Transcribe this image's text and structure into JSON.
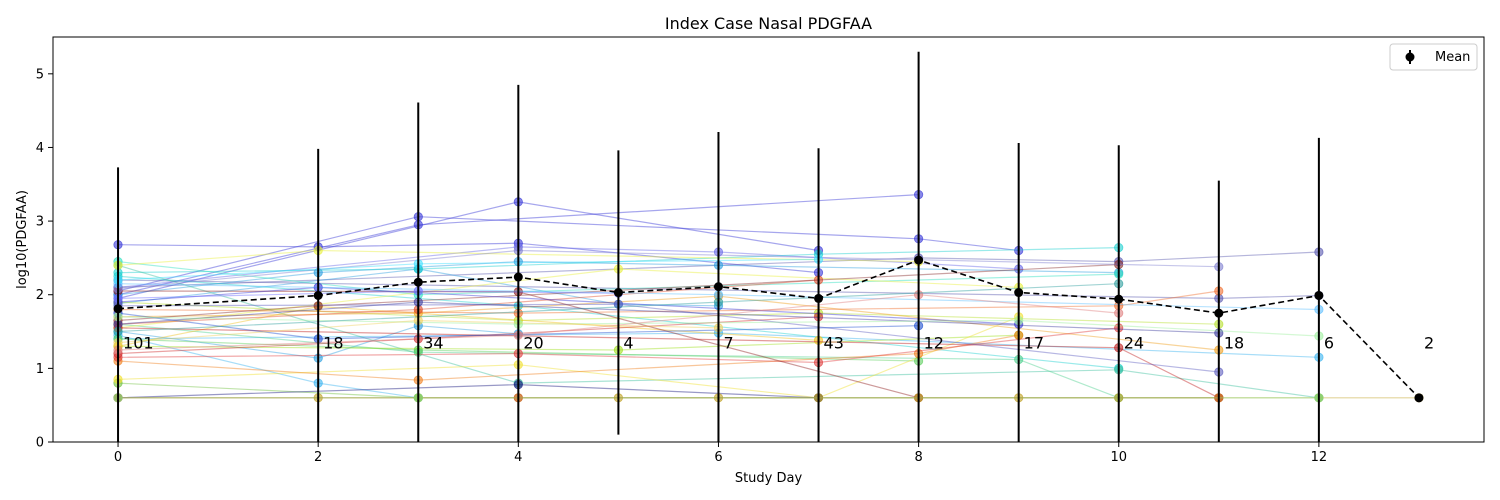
{
  "chart_data": {
    "type": "line",
    "title": "Index Case Nasal PDGFAA",
    "xlabel": "Study Day",
    "ylabel": "log10(PDGFAA)",
    "xlim": [
      -0.65,
      13.65
    ],
    "ylim": [
      0,
      5.5
    ],
    "xticks": [
      0,
      2,
      4,
      6,
      8,
      10,
      12
    ],
    "yticks": [
      0,
      1,
      2,
      3,
      4,
      5
    ],
    "legend": {
      "position": "top-right",
      "entries": [
        "Mean"
      ]
    },
    "colors": {
      "mean": "#000000",
      "axes": "#000000"
    },
    "mean_series": {
      "name": "Mean",
      "x": [
        0,
        2,
        3,
        4,
        5,
        6,
        7,
        8,
        9,
        10,
        11,
        12,
        13
      ],
      "y": [
        1.81,
        1.99,
        2.17,
        2.24,
        2.03,
        2.11,
        1.95,
        2.47,
        2.03,
        1.94,
        1.75,
        1.99,
        0.6
      ],
      "error_low": [
        0,
        0,
        0,
        0,
        0.1,
        0,
        0,
        0,
        0,
        0,
        0,
        0,
        0.6
      ],
      "error_high": [
        3.73,
        3.98,
        4.61,
        4.85,
        3.96,
        4.21,
        3.99,
        5.3,
        4.06,
        4.03,
        3.55,
        4.13,
        0.6
      ]
    },
    "counts": {
      "x": [
        0,
        2,
        3,
        4,
        5,
        6,
        7,
        8,
        9,
        10,
        11,
        12,
        13
      ],
      "labels": [
        "101",
        "18",
        "34",
        "20",
        "4",
        "7",
        "43",
        "12",
        "17",
        "24",
        "18",
        "6",
        "2"
      ],
      "y": 1.35
    },
    "subjects": [
      {
        "color": "#3a3ad8",
        "x": [
          0,
          3,
          8
        ],
        "y": [
          2.0,
          2.95,
          3.36
        ]
      },
      {
        "color": "#3a3ad8",
        "x": [
          0,
          4,
          7
        ],
        "y": [
          1.95,
          3.26,
          2.6
        ]
      },
      {
        "color": "#3a3ad8",
        "x": [
          0,
          3,
          8,
          9
        ],
        "y": [
          2.05,
          3.06,
          2.76,
          2.6
        ]
      },
      {
        "color": "#3a3ad8",
        "x": [
          0,
          2,
          4,
          7
        ],
        "y": [
          2.68,
          2.65,
          2.7,
          2.3
        ]
      },
      {
        "color": "#6a6ae8",
        "x": [
          0,
          4,
          6,
          9
        ],
        "y": [
          2.1,
          2.65,
          2.58,
          2.35
        ]
      },
      {
        "color": "#5a5ab0",
        "x": [
          0,
          8,
          10,
          12
        ],
        "y": [
          2.1,
          2.5,
          2.45,
          2.58
        ]
      },
      {
        "color": "#5a5ab0",
        "x": [
          0,
          11,
          12
        ],
        "y": [
          2.2,
          1.95,
          1.99
        ]
      },
      {
        "color": "#2ea0e0",
        "x": [
          0,
          2,
          4,
          6,
          10
        ],
        "y": [
          2.0,
          2.3,
          2.45,
          2.4,
          2.3
        ]
      },
      {
        "color": "#2ea0e0",
        "x": [
          0,
          3,
          5,
          6
        ],
        "y": [
          1.88,
          2.35,
          1.87,
          1.85
        ]
      },
      {
        "color": "#2ea0e0",
        "x": [
          0,
          2,
          3,
          4
        ],
        "y": [
          1.5,
          1.14,
          1.58,
          1.47
        ]
      },
      {
        "color": "#3bb4f0",
        "x": [
          0,
          2,
          3
        ],
        "y": [
          1.45,
          0.8,
          0.6
        ]
      },
      {
        "color": "#3bb4f0",
        "x": [
          0,
          6,
          12
        ],
        "y": [
          1.4,
          1.48,
          1.15
        ]
      },
      {
        "color": "#20d0d0",
        "x": [
          0,
          3,
          7,
          10
        ],
        "y": [
          2.3,
          2.35,
          2.55,
          2.64
        ]
      },
      {
        "color": "#20d0d0",
        "x": [
          0,
          4,
          10
        ],
        "y": [
          2.25,
          1.85,
          1.0
        ]
      },
      {
        "color": "#30e0c0",
        "x": [
          0,
          3,
          10
        ],
        "y": [
          2.45,
          2.0,
          2.28
        ]
      },
      {
        "color": "#40c0a0",
        "x": [
          0,
          4,
          10,
          12
        ],
        "y": [
          2.4,
          0.8,
          0.98,
          0.6
        ]
      },
      {
        "color": "#50d090",
        "x": [
          0,
          3,
          9,
          10
        ],
        "y": [
          1.6,
          1.22,
          1.12,
          0.6
        ]
      },
      {
        "color": "#60d060",
        "x": [
          0,
          3,
          8
        ],
        "y": [
          1.4,
          1.25,
          1.1
        ]
      },
      {
        "color": "#70c040",
        "x": [
          0,
          3,
          11
        ],
        "y": [
          0.8,
          0.6,
          0.6
        ]
      },
      {
        "color": "#a0e020",
        "x": [
          0,
          5,
          9
        ],
        "y": [
          1.3,
          1.25,
          1.45
        ]
      },
      {
        "color": "#b8e030",
        "x": [
          0,
          4,
          7,
          11
        ],
        "y": [
          1.9,
          1.65,
          1.75,
          1.6
        ]
      },
      {
        "color": "#e8f040",
        "x": [
          0,
          2,
          8
        ],
        "y": [
          2.4,
          2.6,
          2.45
        ]
      },
      {
        "color": "#e8f040",
        "x": [
          0,
          5,
          9
        ],
        "y": [
          1.55,
          2.35,
          2.1
        ]
      },
      {
        "color": "#f0e030",
        "x": [
          0,
          4,
          7,
          9
        ],
        "y": [
          0.85,
          1.05,
          0.6,
          1.7
        ]
      },
      {
        "color": "#f0c020",
        "x": [
          0,
          2,
          7
        ],
        "y": [
          1.3,
          1.84,
          1.38
        ]
      },
      {
        "color": "#f0a020",
        "x": [
          0,
          3,
          6,
          11
        ],
        "y": [
          1.7,
          1.75,
          1.98,
          1.25
        ]
      },
      {
        "color": "#f08020",
        "x": [
          0,
          3,
          8,
          9
        ],
        "y": [
          1.1,
          0.84,
          1.2,
          1.45
        ]
      },
      {
        "color": "#f07030",
        "x": [
          0,
          4,
          10,
          11
        ],
        "y": [
          1.8,
          1.75,
          1.85,
          2.05
        ]
      },
      {
        "color": "#e05030",
        "x": [
          0,
          3,
          7
        ],
        "y": [
          1.6,
          1.8,
          2.2
        ]
      },
      {
        "color": "#e04040",
        "x": [
          0,
          4,
          7,
          10
        ],
        "y": [
          1.15,
          1.2,
          1.08,
          1.55
        ]
      },
      {
        "color": "#d03030",
        "x": [
          0,
          3,
          7
        ],
        "y": [
          1.2,
          1.4,
          1.7
        ]
      },
      {
        "color": "#c02020",
        "x": [
          0,
          10,
          11
        ],
        "y": [
          1.55,
          1.28,
          0.6
        ]
      },
      {
        "color": "#902020",
        "x": [
          0,
          4,
          8
        ],
        "y": [
          2.05,
          2.04,
          0.6
        ]
      },
      {
        "color": "#8a3030",
        "x": [
          0,
          2,
          10
        ],
        "y": [
          1.65,
          1.85,
          2.41
        ]
      },
      {
        "color": "#3a3ad8",
        "x": [
          0,
          2,
          9
        ],
        "y": [
          1.9,
          2.1,
          1.6
        ]
      },
      {
        "color": "#6060c0",
        "x": [
          0,
          5,
          11
        ],
        "y": [
          1.85,
          1.87,
          0.95
        ]
      },
      {
        "color": "#8080d0",
        "x": [
          0,
          4,
          11
        ],
        "y": [
          2.08,
          2.6,
          2.38
        ]
      },
      {
        "color": "#2050d0",
        "x": [
          0,
          2,
          8
        ],
        "y": [
          1.75,
          1.4,
          1.58
        ]
      },
      {
        "color": "#4040a0",
        "x": [
          0,
          3,
          11
        ],
        "y": [
          1.6,
          1.9,
          1.48
        ]
      },
      {
        "color": "#1a1a80",
        "x": [
          0,
          4,
          7
        ],
        "y": [
          0.6,
          0.78,
          0.6
        ]
      },
      {
        "color": "#c0a020",
        "x": [
          0,
          2,
          3,
          4,
          5,
          6,
          7,
          8,
          9,
          10,
          11,
          12,
          13
        ],
        "y": [
          0.6,
          0.6,
          0.6,
          0.6,
          0.6,
          0.6,
          0.6,
          0.6,
          0.6,
          0.6,
          0.6,
          0.6,
          0.6
        ]
      },
      {
        "color": "#d06030",
        "x": [
          0,
          4,
          11
        ],
        "y": [
          0.6,
          0.6,
          0.6
        ]
      },
      {
        "color": "#80e080",
        "x": [
          0,
          3,
          12
        ],
        "y": [
          0.6,
          0.6,
          0.6
        ]
      },
      {
        "color": "#60c0ff",
        "x": [
          0,
          6,
          12
        ],
        "y": [
          2.15,
          2.0,
          1.8
        ]
      },
      {
        "color": "#40e0ff",
        "x": [
          0,
          3,
          7
        ],
        "y": [
          2.2,
          2.42,
          2.48
        ]
      },
      {
        "color": "#a0f0a0",
        "x": [
          0,
          4,
          9,
          12
        ],
        "y": [
          1.7,
          1.6,
          1.65,
          1.44
        ]
      },
      {
        "color": "#f0d060",
        "x": [
          0,
          3,
          6
        ],
        "y": [
          1.35,
          1.65,
          1.55
        ]
      },
      {
        "color": "#e08080",
        "x": [
          0,
          4,
          8,
          10
        ],
        "y": [
          1.25,
          1.45,
          2.0,
          1.75
        ]
      },
      {
        "color": "#7070ff",
        "x": [
          0,
          3,
          5
        ],
        "y": [
          1.95,
          2.05,
          2.02
        ]
      },
      {
        "color": "#30a0a0",
        "x": [
          0,
          6,
          10
        ],
        "y": [
          1.5,
          1.9,
          2.15
        ]
      }
    ]
  }
}
